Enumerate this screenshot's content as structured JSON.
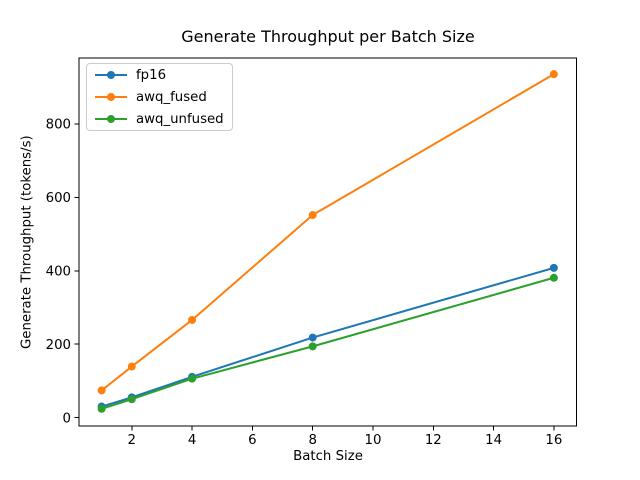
{
  "figure": {
    "background": "#ffffff",
    "axis_color": "#000000",
    "legend_border_color": "#cccccc"
  },
  "chart_data": {
    "type": "line",
    "title": "Generate Throughput per Batch Size",
    "xlabel": "Batch Size",
    "ylabel": "Generate Throughput (tokens/s)",
    "x": [
      1,
      2,
      4,
      8,
      16
    ],
    "series": [
      {
        "name": "fp16",
        "color": "#1f77b4",
        "values": [
          30,
          55,
          111,
          218,
          408
        ]
      },
      {
        "name": "awq_fused",
        "color": "#ff7f0e",
        "values": [
          74,
          139,
          266,
          552,
          936
        ]
      },
      {
        "name": "awq_unfused",
        "color": "#2ca02c",
        "values": [
          24,
          50,
          106,
          194,
          381
        ]
      }
    ],
    "xticks": [
      2,
      4,
      6,
      8,
      10,
      12,
      14,
      16
    ],
    "yticks": [
      0,
      200,
      400,
      600,
      800
    ],
    "xlim": [
      0.25,
      16.75
    ],
    "ylim": [
      -23,
      980
    ],
    "grid": false,
    "marker": "o",
    "legend_position": "upper left"
  }
}
